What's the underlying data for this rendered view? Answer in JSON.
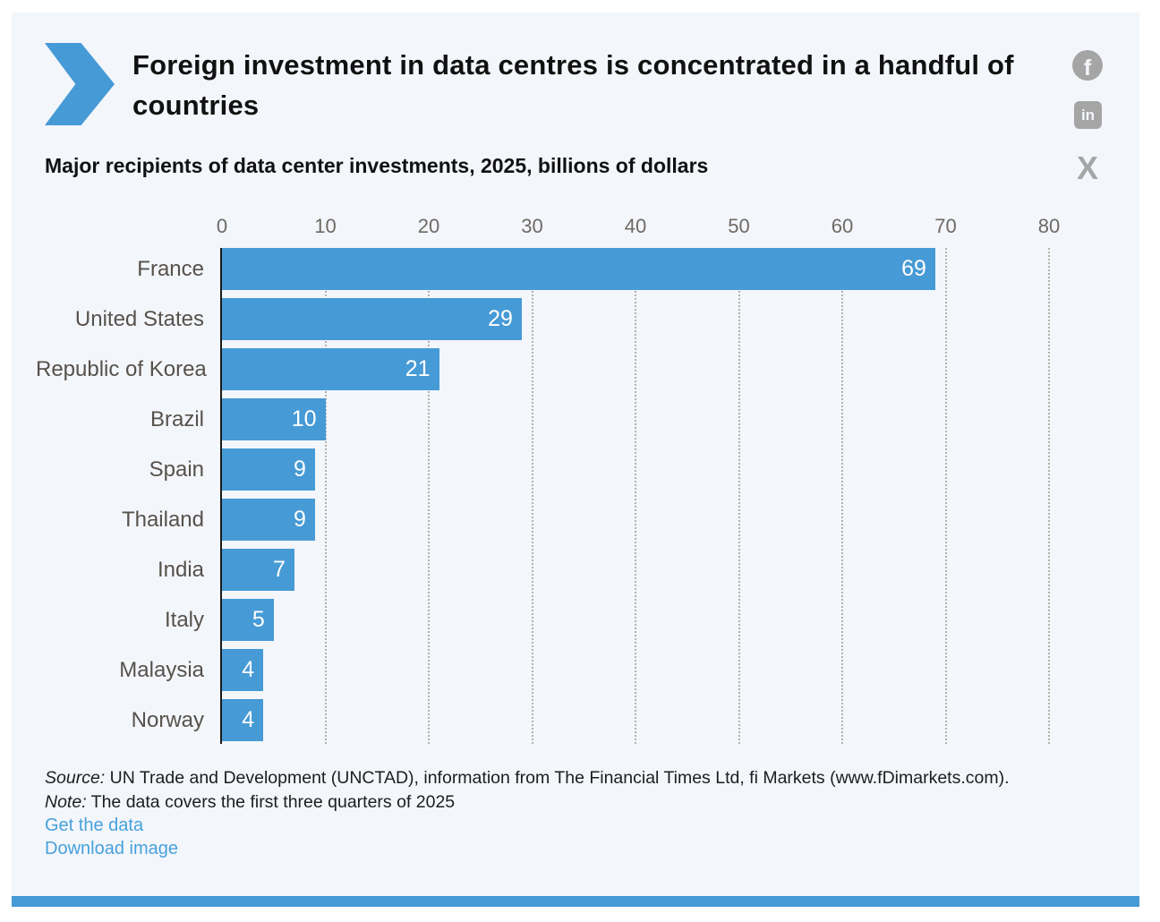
{
  "header": {
    "title": "Foreign investment in data centres is concentrated in a handful of countries",
    "subtitle": "Major recipients of data center investments, 2025, billions of dollars"
  },
  "share": {
    "facebook_glyph": "f",
    "linkedin_glyph": "in",
    "x_glyph": "X"
  },
  "chart_data": {
    "type": "bar",
    "orientation": "horizontal",
    "categories": [
      "France",
      "United States",
      "Republic of Korea",
      "Brazil",
      "Spain",
      "Thailand",
      "India",
      "Italy",
      "Malaysia",
      "Norway"
    ],
    "values": [
      69,
      29,
      21,
      10,
      9,
      9,
      7,
      5,
      4,
      4
    ],
    "xlim": [
      0,
      80
    ],
    "x_ticks": [
      0,
      10,
      20,
      30,
      40,
      50,
      60,
      70,
      80
    ],
    "grid": "dotted-vertical",
    "legend": "none",
    "bar_color": "#469ad5",
    "value_label_color": "#ffffff"
  },
  "footer": {
    "source_label": "Source:",
    "source_text": " UN Trade and Development (UNCTAD), information from The Financial Times Ltd, fi Markets (www.fDimarkets.com).",
    "note_label": "Note:",
    "note_text": " The data covers the first three quarters of 2025",
    "links": [
      {
        "label": "Get the data"
      },
      {
        "label": "Download image"
      }
    ]
  },
  "colors": {
    "accent_blue": "#469ad5",
    "link_blue": "#47a1da",
    "icon_gray": "#a5a5a5",
    "panel_bg": "#f3f6fb",
    "axis_black": "#1a1a1a",
    "grid_gray": "#b4b0ac",
    "category_label": "#57514b",
    "tick_label": "#6f6963"
  }
}
